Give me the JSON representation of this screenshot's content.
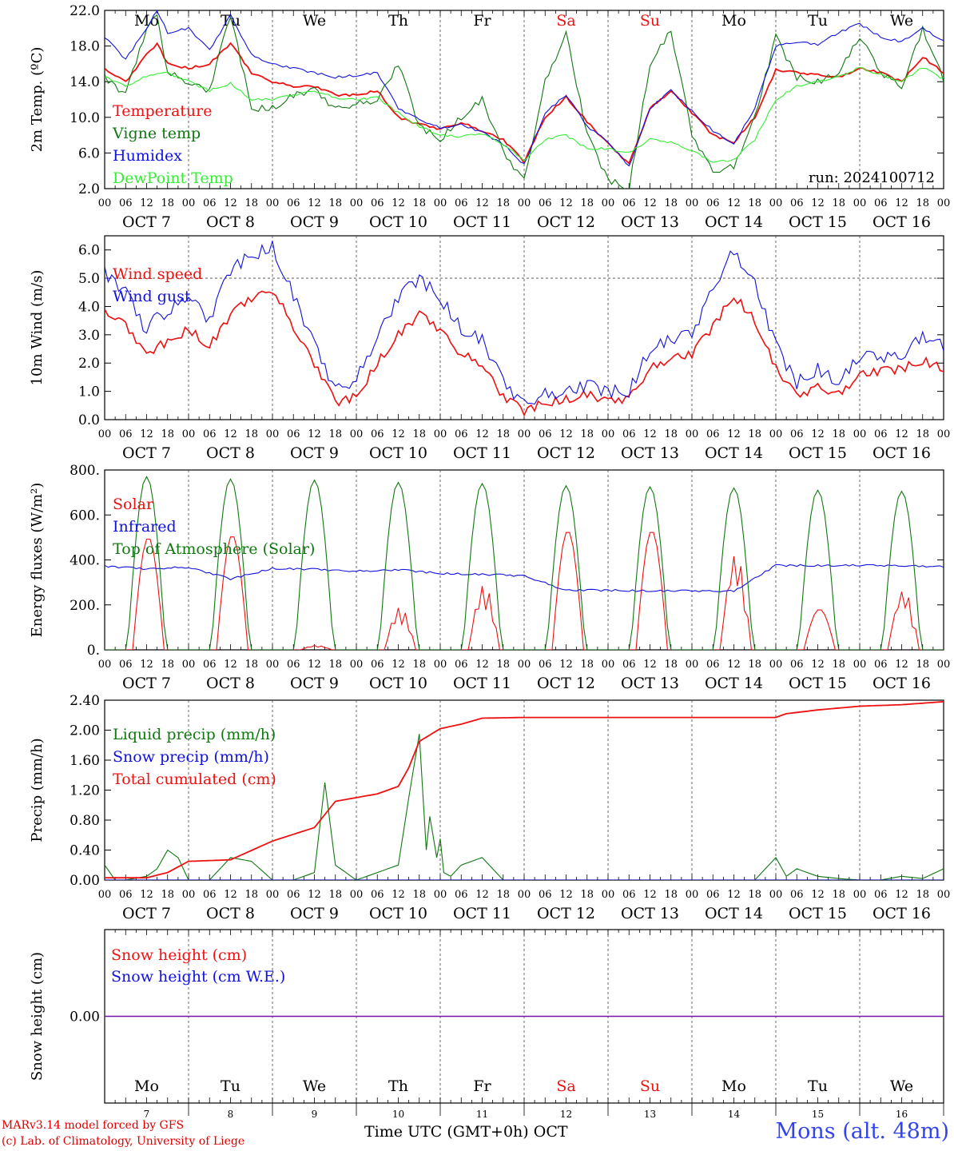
{
  "run_label": "run: 2024100712",
  "x_axis": {
    "hour_ticks": [
      "00",
      "06",
      "12",
      "18"
    ],
    "end_tick": "00",
    "dates": [
      "OCT  7",
      "OCT  8",
      "OCT  9",
      "OCT 10",
      "OCT 11",
      "OCT 12",
      "OCT 13",
      "OCT 14",
      "OCT 15",
      "OCT 16"
    ],
    "weekdays": [
      "Mo",
      "Tu",
      "We",
      "Th",
      "Fr",
      "Sa",
      "Su",
      "Mo",
      "Tu",
      "We"
    ],
    "weekend_flags": [
      false,
      false,
      false,
      false,
      false,
      true,
      true,
      false,
      false,
      false
    ],
    "day_numbers": [
      "7",
      "8",
      "9",
      "10",
      "11",
      "12",
      "13",
      "14",
      "15",
      "16"
    ],
    "label": "Time UTC (GMT+0h)",
    "month": "OCT"
  },
  "footer": {
    "credit1": "MARv3.14 model forced by GFS",
    "credit2": "(c) Lab. of Climatology, University of Liege",
    "station": "Mons (alt. 48m)"
  },
  "colors": {
    "red": "#ee1111",
    "green": "#117711",
    "blue": "#1111dd",
    "lightgreen": "#33ee33",
    "purple": "#7711aa"
  },
  "chart_data": [
    {
      "type": "line",
      "ylabel": "2m Temp. (ºC)",
      "ylim": [
        2,
        22
      ],
      "yticks": [
        "2.0",
        "6.0",
        "10.0",
        "14.0",
        "18.0",
        "22.0"
      ],
      "x_unit": "hours since OCT 7 00 UTC",
      "series": [
        {
          "name": "Temperature",
          "color": "#ee1111",
          "x": [
            0,
            6,
            12,
            15,
            18,
            24,
            30,
            36,
            42,
            48,
            54,
            60,
            66,
            72,
            78,
            84,
            90,
            96,
            102,
            108,
            114,
            120,
            126,
            132,
            138,
            144,
            150,
            156,
            162,
            168,
            174,
            180,
            186,
            192,
            198,
            204,
            210,
            216,
            222,
            228,
            234,
            240
          ],
          "y": [
            15.5,
            14,
            17,
            18.3,
            16,
            15.5,
            16,
            18.3,
            15,
            14,
            13.5,
            13.5,
            12.5,
            12.5,
            13,
            10,
            9.2,
            8.7,
            9.4,
            8.5,
            7.5,
            5,
            10,
            12.3,
            9.5,
            7,
            4.8,
            11,
            13,
            10.5,
            8,
            7.2,
            10,
            15.3,
            15,
            14.8,
            14.5,
            15.5,
            15,
            14,
            16.8,
            15
          ]
        },
        {
          "name": "Vigne temp",
          "color": "#117711",
          "x": [
            0,
            6,
            12,
            15,
            18,
            24,
            30,
            36,
            42,
            48,
            54,
            60,
            66,
            72,
            78,
            84,
            90,
            96,
            102,
            108,
            114,
            120,
            126,
            132,
            138,
            144,
            150,
            156,
            162,
            168,
            174,
            180,
            186,
            192,
            198,
            204,
            210,
            216,
            222,
            228,
            234,
            240
          ],
          "y": [
            14.5,
            12.5,
            20,
            21.5,
            15,
            14,
            13,
            21.5,
            11,
            11,
            12.5,
            13,
            11,
            11.5,
            12,
            16,
            9,
            7.5,
            10,
            12,
            6,
            3,
            14,
            19.5,
            8,
            3,
            2,
            16,
            19.7,
            8,
            4,
            4.5,
            10,
            19,
            14.5,
            14,
            15,
            19,
            15,
            13.5,
            20,
            14.2
          ]
        },
        {
          "name": "Humidex",
          "color": "#1111dd",
          "x": [
            0,
            6,
            12,
            15,
            18,
            24,
            30,
            36,
            42,
            48,
            54,
            60,
            66,
            72,
            78,
            84,
            90,
            96,
            102,
            108,
            114,
            120,
            126,
            132,
            138,
            144,
            150,
            156,
            162,
            168,
            174,
            180,
            186,
            192,
            198,
            204,
            210,
            216,
            222,
            228,
            234,
            240
          ],
          "y": [
            19,
            16.5,
            20,
            22,
            19.5,
            20,
            17.5,
            21.5,
            17,
            16,
            15.5,
            15,
            14.5,
            14.7,
            15,
            11,
            9.8,
            8.8,
            9.2,
            8.3,
            7,
            4.7,
            10.5,
            12.5,
            9,
            7.3,
            4.5,
            11,
            13,
            10.7,
            8.5,
            7,
            11,
            18,
            18.5,
            18.2,
            19.5,
            20.5,
            19,
            18.5,
            20,
            18.5
          ]
        },
        {
          "name": "DewPoint Temp",
          "color": "#33ee33",
          "x": [
            0,
            6,
            12,
            15,
            18,
            24,
            30,
            36,
            42,
            48,
            54,
            60,
            66,
            72,
            78,
            84,
            90,
            96,
            102,
            108,
            114,
            120,
            126,
            132,
            138,
            144,
            150,
            156,
            162,
            168,
            174,
            180,
            186,
            192,
            198,
            204,
            210,
            216,
            222,
            228,
            234,
            240
          ],
          "y": [
            14.6,
            13.5,
            14.6,
            15,
            15,
            14,
            13,
            13.8,
            12,
            12,
            12.5,
            13,
            12.2,
            12,
            12.2,
            10.5,
            9,
            8,
            7.8,
            8.2,
            7,
            5.2,
            7.5,
            8,
            6.5,
            6.5,
            6,
            7.5,
            7.2,
            6.3,
            5,
            5.2,
            7.5,
            12,
            13.5,
            14,
            14.5,
            15.6,
            14.8,
            14,
            15.6,
            14.3
          ]
        }
      ]
    },
    {
      "type": "line",
      "ylabel": "10m Wind (m/s)",
      "ylim": [
        0,
        6.5
      ],
      "yticks": [
        "0.0",
        "1.0",
        "2.0",
        "3.0",
        "4.0",
        "5.0",
        "6.0"
      ],
      "x_unit": "hours since OCT 7 00 UTC",
      "series": [
        {
          "name": "Wind speed",
          "color": "#ee1111",
          "x": [
            0,
            6,
            12,
            15,
            18,
            24,
            30,
            36,
            42,
            48,
            54,
            60,
            66,
            72,
            78,
            84,
            90,
            96,
            102,
            108,
            114,
            120,
            126,
            132,
            138,
            144,
            150,
            156,
            162,
            168,
            174,
            180,
            186,
            192,
            198,
            204,
            210,
            216,
            222,
            228,
            234,
            240
          ],
          "y": [
            3.9,
            3.4,
            2.2,
            2.6,
            2.7,
            3.2,
            2.6,
            3.7,
            4.3,
            4.6,
            3.3,
            2,
            0.6,
            0.8,
            2,
            3,
            3.7,
            3.2,
            2.3,
            2,
            0.8,
            0.3,
            0.6,
            0.7,
            0.9,
            0.6,
            0.8,
            1.8,
            2.2,
            2.3,
            3.3,
            4.4,
            3.5,
            1.8,
            0.8,
            1.2,
            0.9,
            1.6,
            1.7,
            1.8,
            2.1,
            1.8
          ]
        },
        {
          "name": "Wind gust",
          "color": "#1111dd",
          "x": [
            0,
            6,
            12,
            15,
            18,
            24,
            30,
            36,
            42,
            48,
            54,
            60,
            66,
            72,
            78,
            84,
            90,
            96,
            102,
            108,
            114,
            120,
            126,
            132,
            138,
            144,
            150,
            156,
            162,
            168,
            174,
            180,
            186,
            192,
            198,
            204,
            210,
            216,
            222,
            228,
            234,
            240
          ],
          "y": [
            5.2,
            4.5,
            3.1,
            3.8,
            3.7,
            4.5,
            3.5,
            5.3,
            5.8,
            6.1,
            4.4,
            2.6,
            1.1,
            1.4,
            3,
            4.3,
            5,
            4.3,
            3.2,
            2.8,
            1.3,
            0.6,
            0.9,
            1,
            1.2,
            1,
            1,
            2.5,
            2.8,
            3,
            4.7,
            6,
            4.8,
            2.6,
            1.3,
            1.8,
            1.3,
            2.2,
            2.2,
            2.3,
            3,
            2.6
          ]
        }
      ],
      "ref_line": 5.0
    },
    {
      "type": "line",
      "ylabel": "Energy fluxes (W/m²)",
      "ylim": [
        0,
        800
      ],
      "yticks": [
        "0.",
        "200.",
        "400.",
        "600.",
        "800."
      ],
      "x_unit": "hours since OCT 7 00 UTC",
      "series": [
        {
          "name": "Solar",
          "color": "#ee1111",
          "peaks": [
            500,
            510,
            20,
            190,
            290,
            530,
            530,
            430,
            180,
            270
          ]
        },
        {
          "name": "Infrared",
          "color": "#1111dd",
          "x": [
            0,
            12,
            24,
            36,
            48,
            60,
            72,
            84,
            96,
            108,
            120,
            132,
            144,
            156,
            168,
            180,
            192,
            204,
            216,
            228,
            240
          ],
          "y": [
            372,
            360,
            368,
            315,
            362,
            358,
            350,
            356,
            340,
            335,
            330,
            265,
            265,
            262,
            262,
            262,
            375,
            375,
            375,
            375,
            370
          ]
        },
        {
          "name": "Top of Atmosphere (Solar)",
          "color": "#117711",
          "peaks": [
            770,
            760,
            755,
            745,
            740,
            730,
            725,
            720,
            710,
            705
          ]
        }
      ]
    },
    {
      "type": "line",
      "ylabel": "Precip (mm/h)",
      "ylim": [
        0,
        2.4
      ],
      "yticks": [
        "0.00",
        "0.40",
        "0.80",
        "1.20",
        "1.60",
        "2.00",
        "2.40"
      ],
      "x_unit": "hours since OCT 7 00 UTC",
      "series": [
        {
          "name": "Liquid precip (mm/h)",
          "color": "#117711",
          "x": [
            0,
            3,
            6,
            12,
            15,
            18,
            21,
            24,
            30,
            36,
            42,
            48,
            54,
            60,
            63,
            66,
            72,
            78,
            84,
            87,
            90,
            92,
            93,
            95,
            96,
            97,
            99,
            102,
            108,
            114,
            120,
            126,
            132,
            138,
            144,
            150,
            156,
            162,
            168,
            174,
            180,
            186,
            192,
            195,
            198,
            204,
            210,
            216,
            222,
            228,
            234,
            240
          ],
          "y": [
            0.2,
            0,
            0,
            0.05,
            0.15,
            0.4,
            0.3,
            0,
            0,
            0.3,
            0.25,
            0,
            0,
            0.1,
            1.3,
            0.2,
            0,
            0.1,
            0.2,
            1.1,
            1.95,
            0.4,
            0.85,
            0.3,
            0.55,
            0.1,
            0.05,
            0.2,
            0.3,
            0,
            0,
            0,
            0,
            0,
            0,
            0,
            0,
            0,
            0,
            0,
            0,
            0,
            0.3,
            0.05,
            0.15,
            0.05,
            0.02,
            0,
            0,
            0.05,
            0.02,
            0.15
          ]
        },
        {
          "name": "Snow precip (mm/h)",
          "color": "#1111dd",
          "x": [
            0,
            240
          ],
          "y": [
            0,
            0
          ]
        },
        {
          "name": "Total cumulated (cm)",
          "color": "#ee1111",
          "x": [
            0,
            12,
            18,
            24,
            36,
            48,
            60,
            66,
            72,
            78,
            84,
            87,
            90,
            96,
            102,
            108,
            120,
            144,
            168,
            192,
            195,
            204,
            216,
            228,
            240
          ],
          "y": [
            0.03,
            0.03,
            0.1,
            0.25,
            0.27,
            0.52,
            0.7,
            1.05,
            1.1,
            1.15,
            1.25,
            1.5,
            1.85,
            2.02,
            2.08,
            2.16,
            2.17,
            2.17,
            2.17,
            2.17,
            2.22,
            2.27,
            2.32,
            2.34,
            2.38
          ]
        }
      ]
    },
    {
      "type": "line",
      "ylabel": "Snow height (cm)",
      "ylim": [
        -1,
        1
      ],
      "yticks": [
        "0.00"
      ],
      "x_unit": "hours since OCT 7 00 UTC",
      "series": [
        {
          "name": "Snow height (cm)",
          "color": "#ee1111",
          "x": [
            0,
            240
          ],
          "y": [
            0,
            0
          ]
        },
        {
          "name": "Snow height (cm W.E.)",
          "color": "#1111dd",
          "x": [
            0,
            240
          ],
          "y": [
            0,
            0
          ]
        }
      ]
    }
  ]
}
